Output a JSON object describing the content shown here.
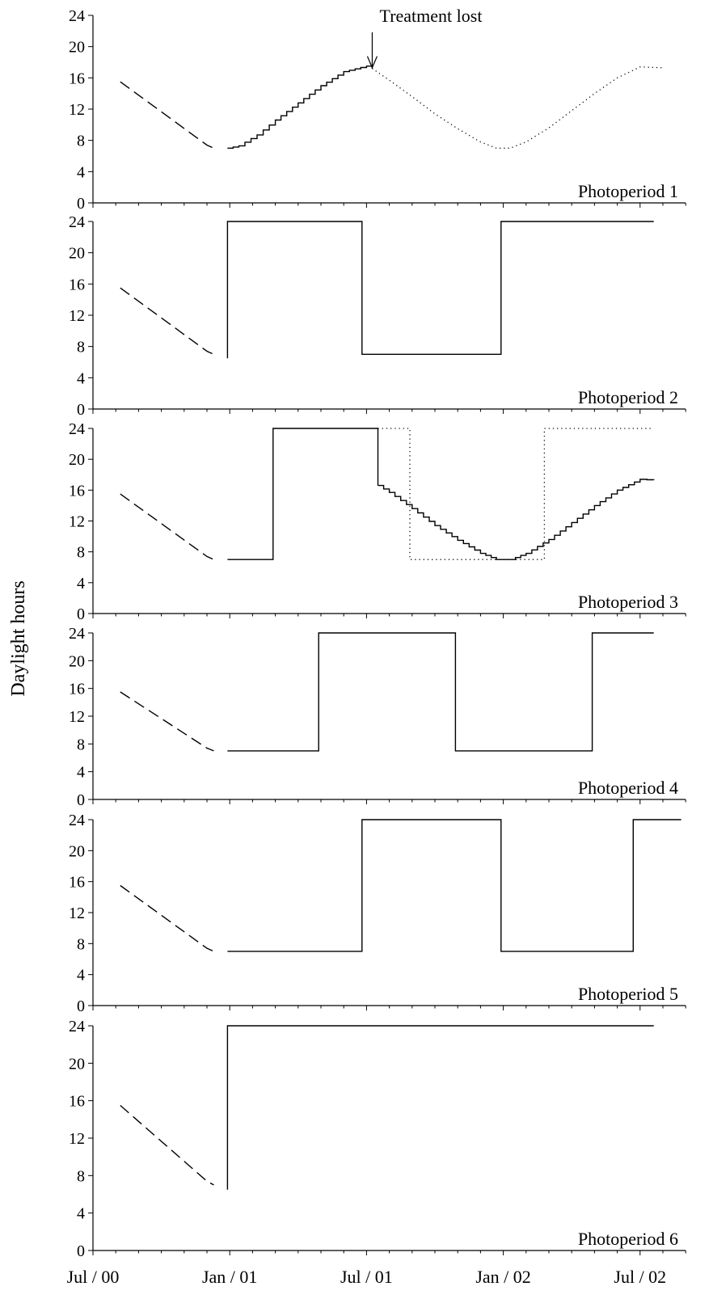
{
  "figure": {
    "ylabel": "Daylight hours",
    "annotation": "Treatment lost",
    "x_ticks": [
      "Jul / 00",
      "Jan / 01",
      "Jul / 01",
      "Jan / 02",
      "Jul / 02"
    ]
  },
  "chart_data": [
    {
      "type": "line",
      "title": "Photoperiod 1",
      "ylabel": "Daylight hours",
      "x_unit": "months since Jul 2000",
      "ylim": [
        0,
        24
      ],
      "yticks": [
        0,
        4,
        8,
        12,
        16,
        20,
        24
      ],
      "annotation": {
        "text": "Treatment lost",
        "x": 12.25,
        "y": 17
      },
      "series": [
        {
          "style": "dashed",
          "x": [
            1.2,
            5.0,
            5.3
          ],
          "y": [
            15.5,
            7.4,
            7.0
          ]
        },
        {
          "style": "stepped",
          "x": [
            5.9,
            6.4,
            7.2,
            8.0,
            9.0,
            10.0,
            11.0,
            12.0,
            12.25
          ],
          "y": [
            7.0,
            7.3,
            8.7,
            10.6,
            12.8,
            15.0,
            16.8,
            17.5,
            17.2
          ]
        },
        {
          "style": "dotted",
          "x": [
            12.25,
            13.0,
            14.0,
            15.0,
            16.0,
            17.0,
            17.7,
            18.3,
            19.0,
            20.0,
            21.0,
            22.0,
            23.0,
            24.0,
            25.0
          ],
          "y": [
            17.2,
            15.7,
            13.6,
            11.4,
            9.5,
            7.8,
            7.0,
            7.0,
            7.8,
            9.6,
            11.8,
            14.0,
            16.0,
            17.4,
            17.3
          ]
        }
      ]
    },
    {
      "type": "line",
      "title": "Photoperiod 2",
      "ylabel": "Daylight hours",
      "x_unit": "months since Jul 2000",
      "ylim": [
        0,
        24
      ],
      "yticks": [
        0,
        4,
        8,
        12,
        16,
        20,
        24
      ],
      "series": [
        {
          "style": "dashed",
          "x": [
            1.2,
            5.0,
            5.3
          ],
          "y": [
            15.5,
            7.4,
            7.0
          ]
        },
        {
          "style": "solid",
          "x": [
            5.9,
            5.9,
            11.8,
            11.8,
            17.9,
            17.9,
            24.6
          ],
          "y": [
            6.5,
            24,
            24,
            7,
            7,
            24,
            24
          ]
        }
      ]
    },
    {
      "type": "line",
      "title": "Photoperiod 3",
      "ylabel": "Daylight hours",
      "x_unit": "months since Jul 2000",
      "ylim": [
        0,
        24
      ],
      "yticks": [
        0,
        4,
        8,
        12,
        16,
        20,
        24
      ],
      "series": [
        {
          "style": "dashed",
          "x": [
            1.2,
            5.0,
            5.3
          ],
          "y": [
            15.5,
            7.4,
            7.0
          ]
        },
        {
          "style": "solid",
          "x": [
            5.9,
            7.9,
            7.9,
            12.5,
            12.5
          ],
          "y": [
            7,
            7,
            24,
            24,
            16.6
          ]
        },
        {
          "style": "stepped",
          "x": [
            12.5,
            13.0,
            14.0,
            15.0,
            16.0,
            17.0,
            17.7,
            18.3,
            19.0,
            20.0,
            21.0,
            22.0,
            23.0,
            24.0,
            24.6
          ],
          "y": [
            16.6,
            15.7,
            13.6,
            11.4,
            9.5,
            7.8,
            7.0,
            7.0,
            7.8,
            9.6,
            11.8,
            14.0,
            16.0,
            17.4,
            17.3
          ]
        },
        {
          "style": "dotted",
          "x": [
            12.5,
            13.9,
            13.9,
            19.8,
            19.8,
            24.6
          ],
          "y": [
            24,
            24,
            7,
            7,
            24,
            24
          ]
        }
      ]
    },
    {
      "type": "line",
      "title": "Photoperiod 4",
      "ylabel": "Daylight hours",
      "x_unit": "months since Jul 2000",
      "ylim": [
        0,
        24
      ],
      "yticks": [
        0,
        4,
        8,
        12,
        16,
        20,
        24
      ],
      "series": [
        {
          "style": "dashed",
          "x": [
            1.2,
            5.0,
            5.3
          ],
          "y": [
            15.5,
            7.4,
            7.0
          ]
        },
        {
          "style": "solid",
          "x": [
            5.9,
            9.9,
            9.9,
            15.9,
            15.9,
            21.9,
            21.9,
            24.6
          ],
          "y": [
            7,
            7,
            24,
            24,
            7,
            7,
            24,
            24
          ]
        }
      ]
    },
    {
      "type": "line",
      "title": "Photoperiod 5",
      "ylabel": "Daylight hours",
      "x_unit": "months since Jul 2000",
      "ylim": [
        0,
        24
      ],
      "yticks": [
        0,
        4,
        8,
        12,
        16,
        20,
        24
      ],
      "series": [
        {
          "style": "dashed",
          "x": [
            1.2,
            5.0,
            5.3
          ],
          "y": [
            15.5,
            7.4,
            7.0
          ]
        },
        {
          "style": "solid",
          "x": [
            5.9,
            11.8,
            11.8,
            17.9,
            17.9,
            23.7,
            23.7,
            25.8
          ],
          "y": [
            7,
            7,
            24,
            24,
            7,
            7,
            24,
            24
          ]
        }
      ]
    },
    {
      "type": "line",
      "title": "Photoperiod 6",
      "ylabel": "Daylight hours",
      "x_unit": "months since Jul 2000",
      "ylim": [
        0,
        24
      ],
      "yticks": [
        0,
        4,
        8,
        12,
        16,
        20,
        24
      ],
      "x_ticklabels": [
        "Jul / 00",
        "Jan / 01",
        "Jul / 01",
        "Jan / 02",
        "Jul / 02"
      ],
      "series": [
        {
          "style": "dashed",
          "x": [
            1.2,
            5.0,
            5.3
          ],
          "y": [
            15.5,
            7.4,
            7.0
          ]
        },
        {
          "style": "solid",
          "x": [
            5.9,
            5.9,
            24.6
          ],
          "y": [
            6.5,
            24,
            24
          ]
        }
      ]
    }
  ]
}
